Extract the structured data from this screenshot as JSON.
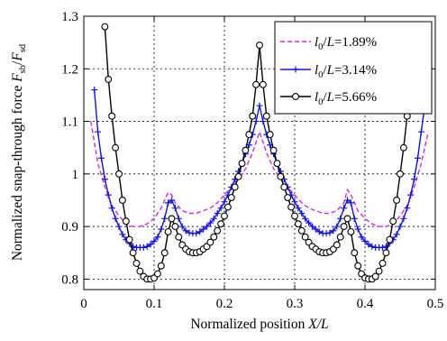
{
  "chart_data": {
    "type": "line",
    "xlabel": "Normalized position  X/L",
    "ylabel": "Normalized snap-through force F_sb/F_sd",
    "xlim": [
      0,
      0.5
    ],
    "ylim": [
      0.78,
      1.3
    ],
    "grid": true,
    "legend_position": "top-right",
    "x_ticks": [
      0,
      0.1,
      0.2,
      0.3,
      0.4,
      0.5
    ],
    "x_tick_labels": [
      "0",
      "0.1",
      "0.2",
      "0.3",
      "0.4",
      "0.5"
    ],
    "y_ticks": [
      0.8,
      0.9,
      1.0,
      1.1,
      1.2,
      1.3
    ],
    "y_tick_labels": [
      "0.8",
      "0.9",
      "1",
      "1.1",
      "1.2",
      "1.3"
    ],
    "series": [
      {
        "name": "l0/L=1.89%",
        "color": "#e020e0",
        "style": "dashed",
        "marker": "none",
        "x": [
          0.01,
          0.02,
          0.03,
          0.04,
          0.05,
          0.06,
          0.07,
          0.08,
          0.09,
          0.1,
          0.11,
          0.115,
          0.12,
          0.125,
          0.13,
          0.14,
          0.15,
          0.16,
          0.17,
          0.18,
          0.19,
          0.2,
          0.21,
          0.22,
          0.23,
          0.24,
          0.25,
          0.26,
          0.27,
          0.28,
          0.29,
          0.3,
          0.31,
          0.32,
          0.33,
          0.34,
          0.35,
          0.36,
          0.37,
          0.375,
          0.38,
          0.39,
          0.4,
          0.41,
          0.42,
          0.43,
          0.44,
          0.45,
          0.46,
          0.47,
          0.48,
          0.49
        ],
        "y": [
          1.1,
          1.02,
          0.975,
          0.94,
          0.92,
          0.905,
          0.9,
          0.9,
          0.905,
          0.915,
          0.935,
          0.95,
          0.965,
          0.96,
          0.945,
          0.93,
          0.925,
          0.925,
          0.93,
          0.935,
          0.945,
          0.96,
          0.975,
          0.99,
          1.01,
          1.04,
          1.08,
          1.04,
          1.01,
          0.99,
          0.975,
          0.96,
          0.945,
          0.935,
          0.93,
          0.925,
          0.925,
          0.93,
          0.945,
          0.97,
          0.96,
          0.93,
          0.915,
          0.905,
          0.9,
          0.9,
          0.905,
          0.92,
          0.94,
          0.975,
          1.02,
          1.08
        ]
      },
      {
        "name": "l0/L=3.14%",
        "color": "#1010ee",
        "style": "solid",
        "marker": "plus",
        "x": [
          0.015,
          0.02,
          0.025,
          0.03,
          0.035,
          0.04,
          0.045,
          0.05,
          0.055,
          0.06,
          0.065,
          0.07,
          0.075,
          0.08,
          0.085,
          0.09,
          0.095,
          0.1,
          0.105,
          0.11,
          0.115,
          0.12,
          0.125,
          0.13,
          0.135,
          0.14,
          0.145,
          0.15,
          0.155,
          0.16,
          0.165,
          0.17,
          0.175,
          0.18,
          0.185,
          0.19,
          0.195,
          0.2,
          0.205,
          0.21,
          0.215,
          0.22,
          0.225,
          0.23,
          0.235,
          0.24,
          0.245,
          0.25,
          0.255,
          0.26,
          0.265,
          0.27,
          0.275,
          0.28,
          0.285,
          0.29,
          0.295,
          0.3,
          0.305,
          0.31,
          0.315,
          0.32,
          0.325,
          0.33,
          0.335,
          0.34,
          0.345,
          0.35,
          0.355,
          0.36,
          0.365,
          0.37,
          0.375,
          0.38,
          0.385,
          0.39,
          0.395,
          0.4,
          0.405,
          0.41,
          0.415,
          0.42,
          0.425,
          0.43,
          0.435,
          0.44,
          0.445,
          0.45,
          0.455,
          0.46,
          0.465,
          0.47,
          0.475,
          0.48,
          0.485
        ],
        "y": [
          1.16,
          1.08,
          1.03,
          0.99,
          0.96,
          0.935,
          0.915,
          0.9,
          0.885,
          0.875,
          0.868,
          0.862,
          0.86,
          0.86,
          0.86,
          0.862,
          0.866,
          0.872,
          0.88,
          0.895,
          0.915,
          0.945,
          0.95,
          0.935,
          0.915,
          0.9,
          0.892,
          0.888,
          0.887,
          0.887,
          0.89,
          0.895,
          0.9,
          0.907,
          0.915,
          0.925,
          0.935,
          0.947,
          0.96,
          0.975,
          0.99,
          1.005,
          1.02,
          1.038,
          1.055,
          1.075,
          1.1,
          1.13,
          1.1,
          1.075,
          1.055,
          1.038,
          1.02,
          1.005,
          0.99,
          0.975,
          0.96,
          0.947,
          0.935,
          0.925,
          0.915,
          0.907,
          0.9,
          0.895,
          0.89,
          0.887,
          0.887,
          0.888,
          0.892,
          0.9,
          0.915,
          0.935,
          0.95,
          0.945,
          0.915,
          0.895,
          0.88,
          0.872,
          0.866,
          0.862,
          0.86,
          0.86,
          0.86,
          0.862,
          0.868,
          0.875,
          0.885,
          0.9,
          0.915,
          0.935,
          0.96,
          0.99,
          1.03,
          1.08,
          1.13
        ]
      },
      {
        "name": "l0/L=5.66%",
        "color": "#000000",
        "style": "solid",
        "marker": "circle",
        "x": [
          0.03,
          0.035,
          0.04,
          0.045,
          0.05,
          0.055,
          0.06,
          0.065,
          0.07,
          0.075,
          0.08,
          0.085,
          0.09,
          0.095,
          0.1,
          0.105,
          0.11,
          0.115,
          0.12,
          0.125,
          0.13,
          0.135,
          0.14,
          0.145,
          0.15,
          0.155,
          0.16,
          0.165,
          0.17,
          0.175,
          0.18,
          0.185,
          0.19,
          0.195,
          0.2,
          0.205,
          0.21,
          0.215,
          0.22,
          0.225,
          0.23,
          0.235,
          0.24,
          0.245,
          0.25,
          0.255,
          0.26,
          0.265,
          0.27,
          0.275,
          0.28,
          0.285,
          0.29,
          0.295,
          0.3,
          0.305,
          0.31,
          0.315,
          0.32,
          0.325,
          0.33,
          0.335,
          0.34,
          0.345,
          0.35,
          0.355,
          0.36,
          0.365,
          0.37,
          0.375,
          0.38,
          0.385,
          0.39,
          0.395,
          0.4,
          0.405,
          0.41,
          0.415,
          0.42,
          0.425,
          0.43,
          0.435,
          0.44,
          0.445,
          0.45,
          0.455,
          0.46,
          0.465
        ],
        "y": [
          1.28,
          1.18,
          1.11,
          1.05,
          1.0,
          0.95,
          0.91,
          0.875,
          0.85,
          0.83,
          0.815,
          0.805,
          0.8,
          0.8,
          0.802,
          0.81,
          0.825,
          0.85,
          0.89,
          0.915,
          0.9,
          0.88,
          0.865,
          0.857,
          0.852,
          0.85,
          0.85,
          0.852,
          0.857,
          0.862,
          0.87,
          0.88,
          0.892,
          0.905,
          0.92,
          0.937,
          0.955,
          0.975,
          0.995,
          1.02,
          1.045,
          1.075,
          1.11,
          1.17,
          1.245,
          1.17,
          1.11,
          1.075,
          1.045,
          1.02,
          0.995,
          0.975,
          0.955,
          0.937,
          0.92,
          0.905,
          0.892,
          0.88,
          0.87,
          0.862,
          0.857,
          0.852,
          0.85,
          0.85,
          0.852,
          0.857,
          0.865,
          0.88,
          0.9,
          0.915,
          0.89,
          0.85,
          0.825,
          0.81,
          0.802,
          0.8,
          0.8,
          0.805,
          0.815,
          0.83,
          0.85,
          0.875,
          0.91,
          0.95,
          1.0,
          1.05,
          1.11,
          1.23
        ]
      }
    ]
  }
}
